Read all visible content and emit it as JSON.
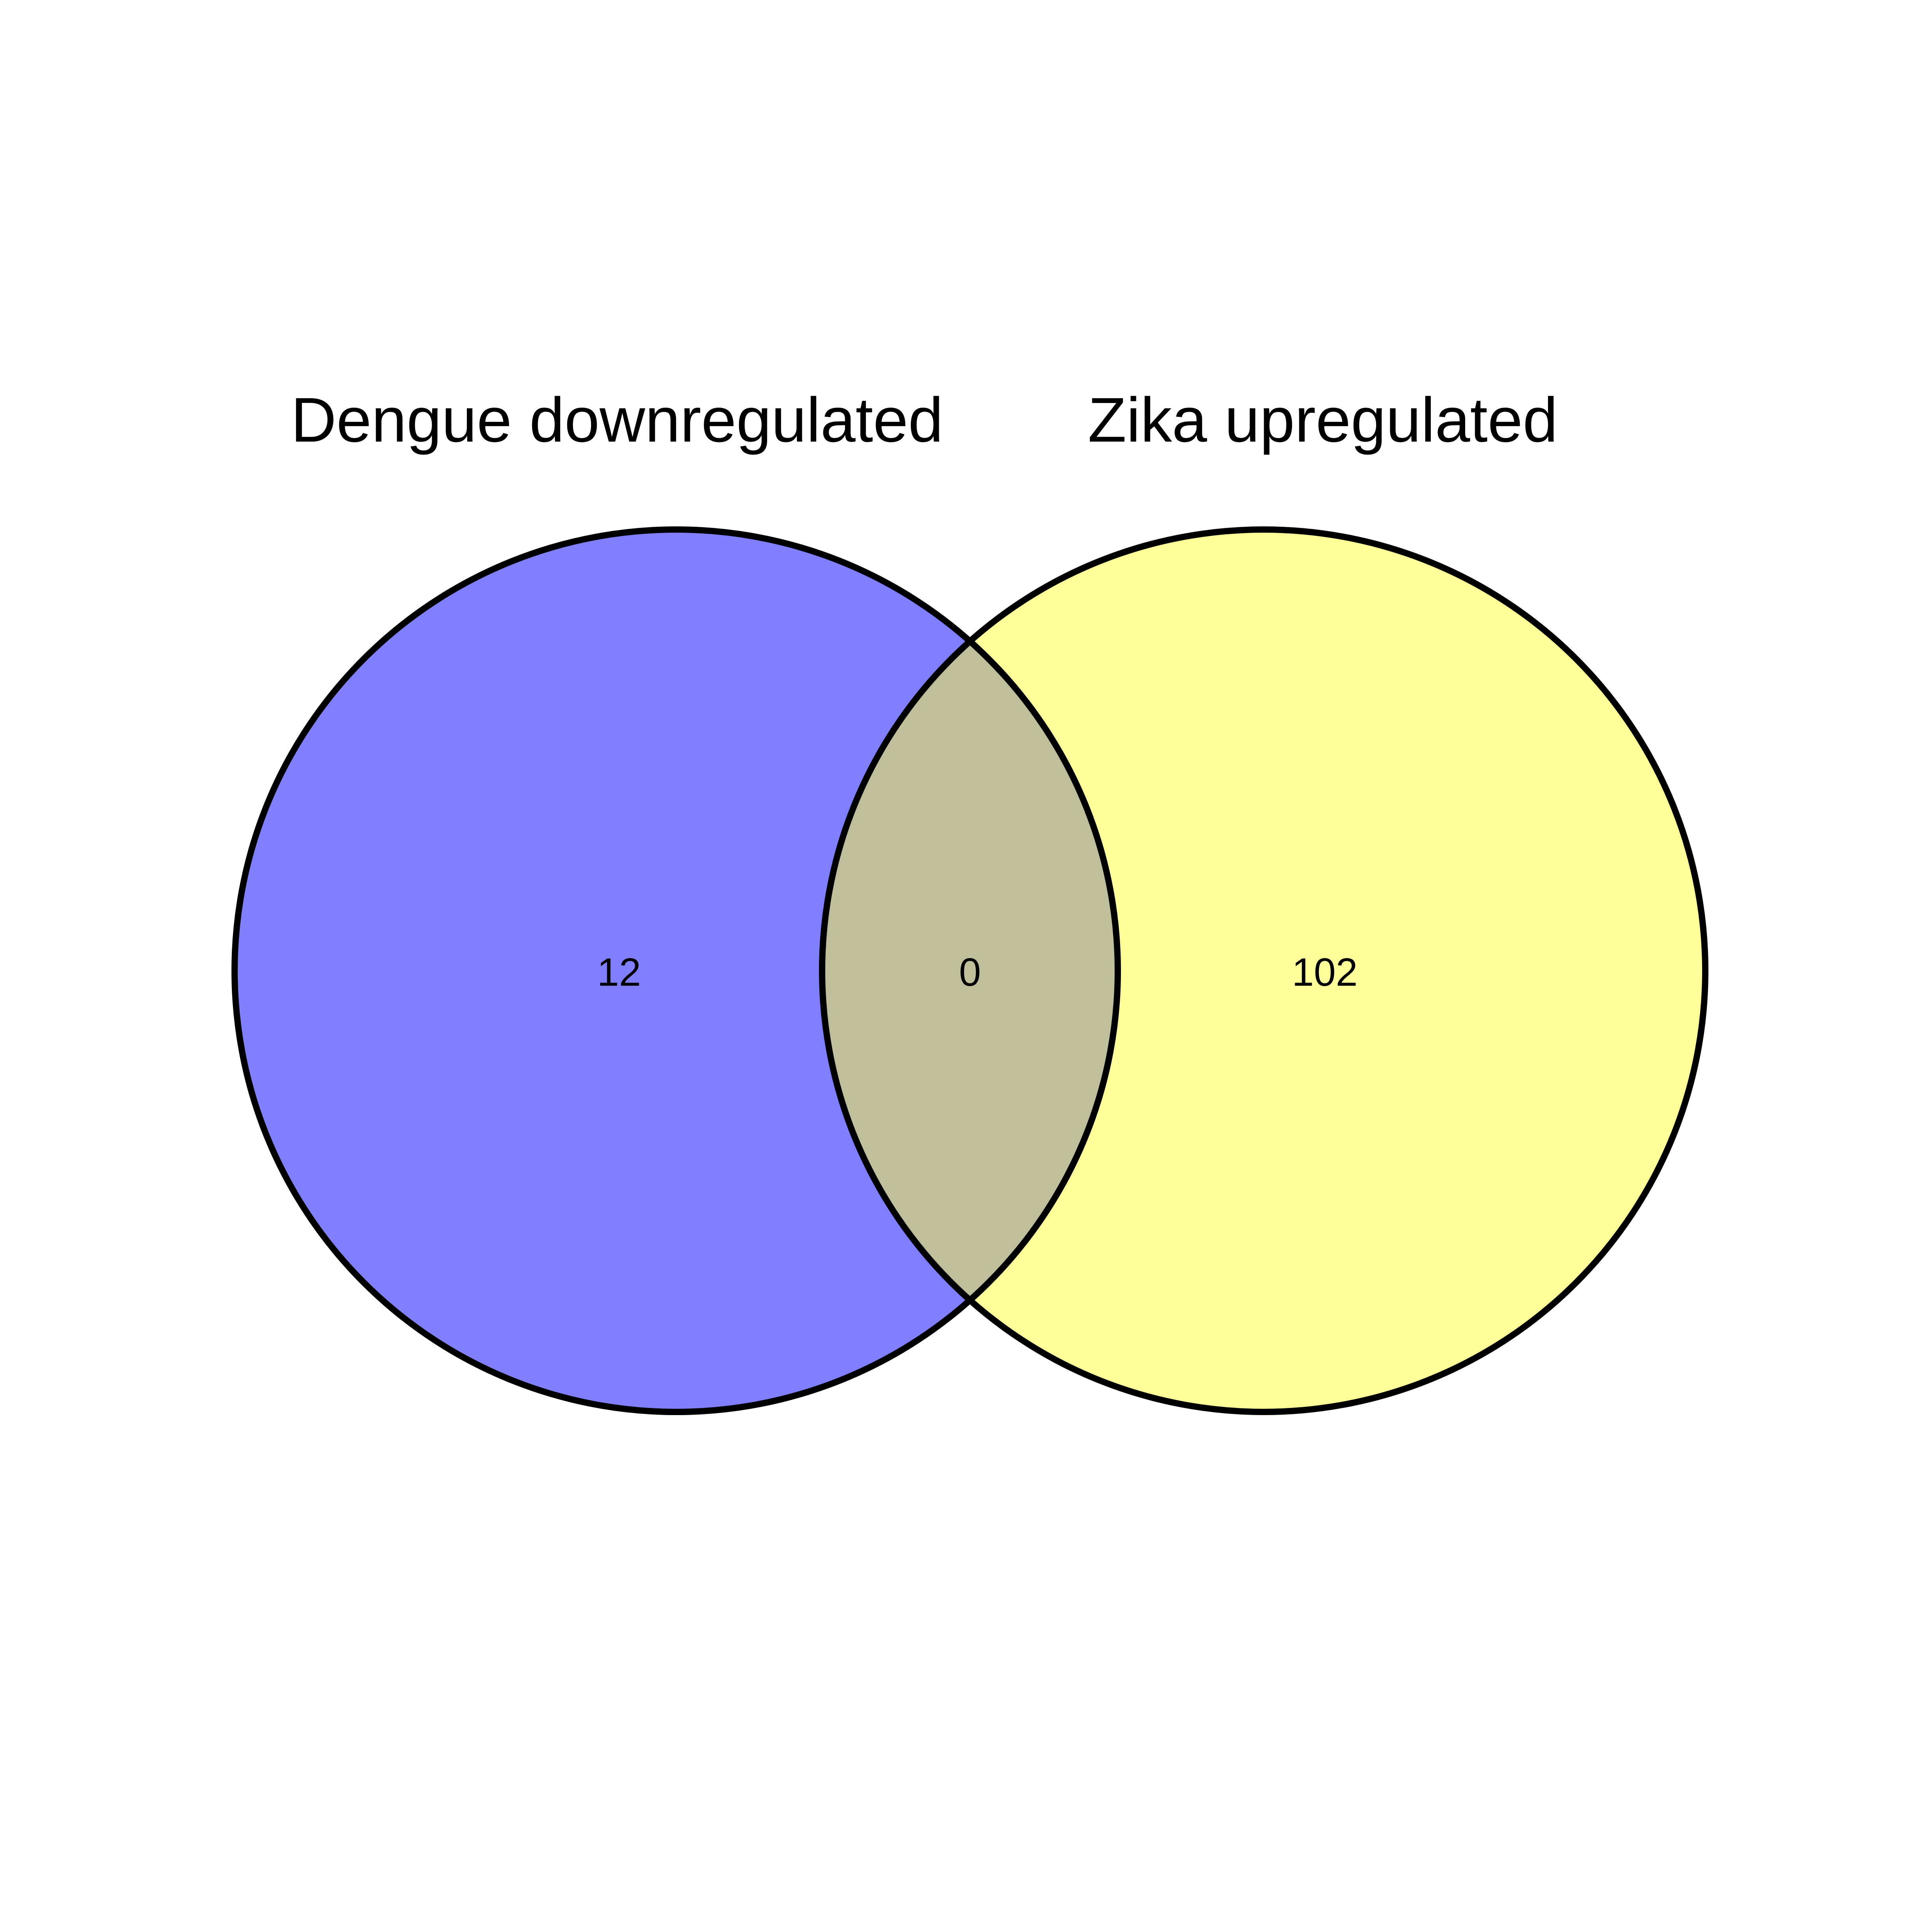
{
  "diagram": {
    "type": "venn",
    "sets": [
      {
        "id": "A",
        "label": "Dengue downregulated",
        "only_count": "12",
        "color": "#8080FF"
      },
      {
        "id": "B",
        "label": "Zika upregulated",
        "only_count": "102",
        "color": "#FFFF99"
      }
    ],
    "intersection": {
      "sets": [
        "A",
        "B"
      ],
      "count": "0",
      "color": "#BFBF9C"
    },
    "outline_color": "#000000",
    "background": "#FFFFFF"
  }
}
